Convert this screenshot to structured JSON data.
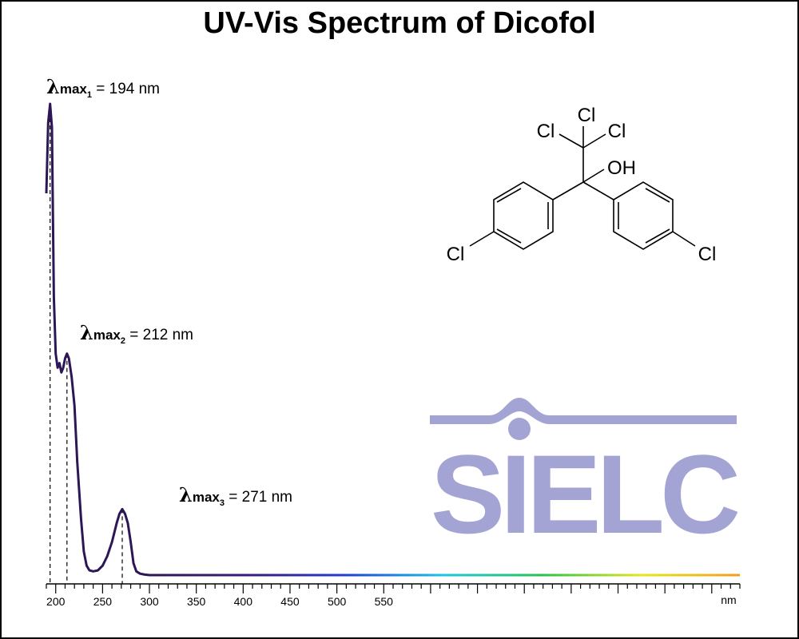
{
  "title": "UV-Vis Spectrum of Dicofol",
  "chart_data": {
    "type": "line",
    "title": "UV-Vis Spectrum of Dicofol",
    "xlabel": "nm",
    "ylabel": "",
    "xlim": [
      190,
      930
    ],
    "ylim": [
      0,
      1
    ],
    "x_ticks": [
      200,
      250,
      300,
      350,
      400,
      450,
      500,
      550
    ],
    "x_unit_label": "nm",
    "grid": false,
    "series": [
      {
        "points": [
          [
            190,
            0.81
          ],
          [
            192,
            0.96
          ],
          [
            194,
            1.0
          ],
          [
            196,
            0.95
          ],
          [
            198,
            0.59
          ],
          [
            200,
            0.47
          ],
          [
            202,
            0.44
          ],
          [
            204,
            0.45
          ],
          [
            206,
            0.43
          ],
          [
            208,
            0.44
          ],
          [
            210,
            0.46
          ],
          [
            212,
            0.47
          ],
          [
            214,
            0.46
          ],
          [
            217,
            0.42
          ],
          [
            220,
            0.36
          ],
          [
            223,
            0.24
          ],
          [
            227,
            0.12
          ],
          [
            230,
            0.05
          ],
          [
            233,
            0.02
          ],
          [
            236,
            0.01
          ],
          [
            240,
            0.008
          ],
          [
            245,
            0.01
          ],
          [
            250,
            0.02
          ],
          [
            255,
            0.04
          ],
          [
            260,
            0.07
          ],
          [
            265,
            0.11
          ],
          [
            268,
            0.13
          ],
          [
            271,
            0.14
          ],
          [
            274,
            0.13
          ],
          [
            277,
            0.11
          ],
          [
            280,
            0.07
          ],
          [
            283,
            0.025
          ],
          [
            286,
            0.008
          ],
          [
            290,
            0.003
          ],
          [
            295,
            0.001
          ],
          [
            300,
            0.0
          ],
          [
            350,
            0.0
          ],
          [
            400,
            0.0
          ],
          [
            450,
            0.0
          ],
          [
            500,
            0.0
          ],
          [
            550,
            0.0
          ],
          [
            600,
            0.0
          ],
          [
            650,
            0.0
          ],
          [
            700,
            0.0
          ],
          [
            750,
            0.0
          ],
          [
            800,
            0.0
          ],
          [
            850,
            0.0
          ],
          [
            900,
            0.0
          ],
          [
            930,
            0.0
          ]
        ]
      }
    ],
    "peaks": [
      {
        "symbol": "λ",
        "word": "max",
        "sub": "1",
        "text": " = 194 nm",
        "x": 194
      },
      {
        "symbol": "λ",
        "word": "max",
        "sub": "2",
        "text": " = 212 nm",
        "x": 212
      },
      {
        "symbol": "λ",
        "word": "max",
        "sub": "3",
        "text": " = 271 nm",
        "x": 271
      }
    ],
    "colors": {
      "line": "#2d1656",
      "spectrum": [
        "#2d1656",
        "#3b1a7a",
        "#1f3fd0",
        "#19c8e6",
        "#27c24a",
        "#e6e61e",
        "#f29d19"
      ]
    }
  },
  "molecule": {
    "atoms": [
      "Cl",
      "Cl",
      "Cl",
      "OH",
      "Cl",
      "Cl"
    ]
  },
  "logo": {
    "text": "SIELC",
    "color": "#a3a4d4"
  }
}
